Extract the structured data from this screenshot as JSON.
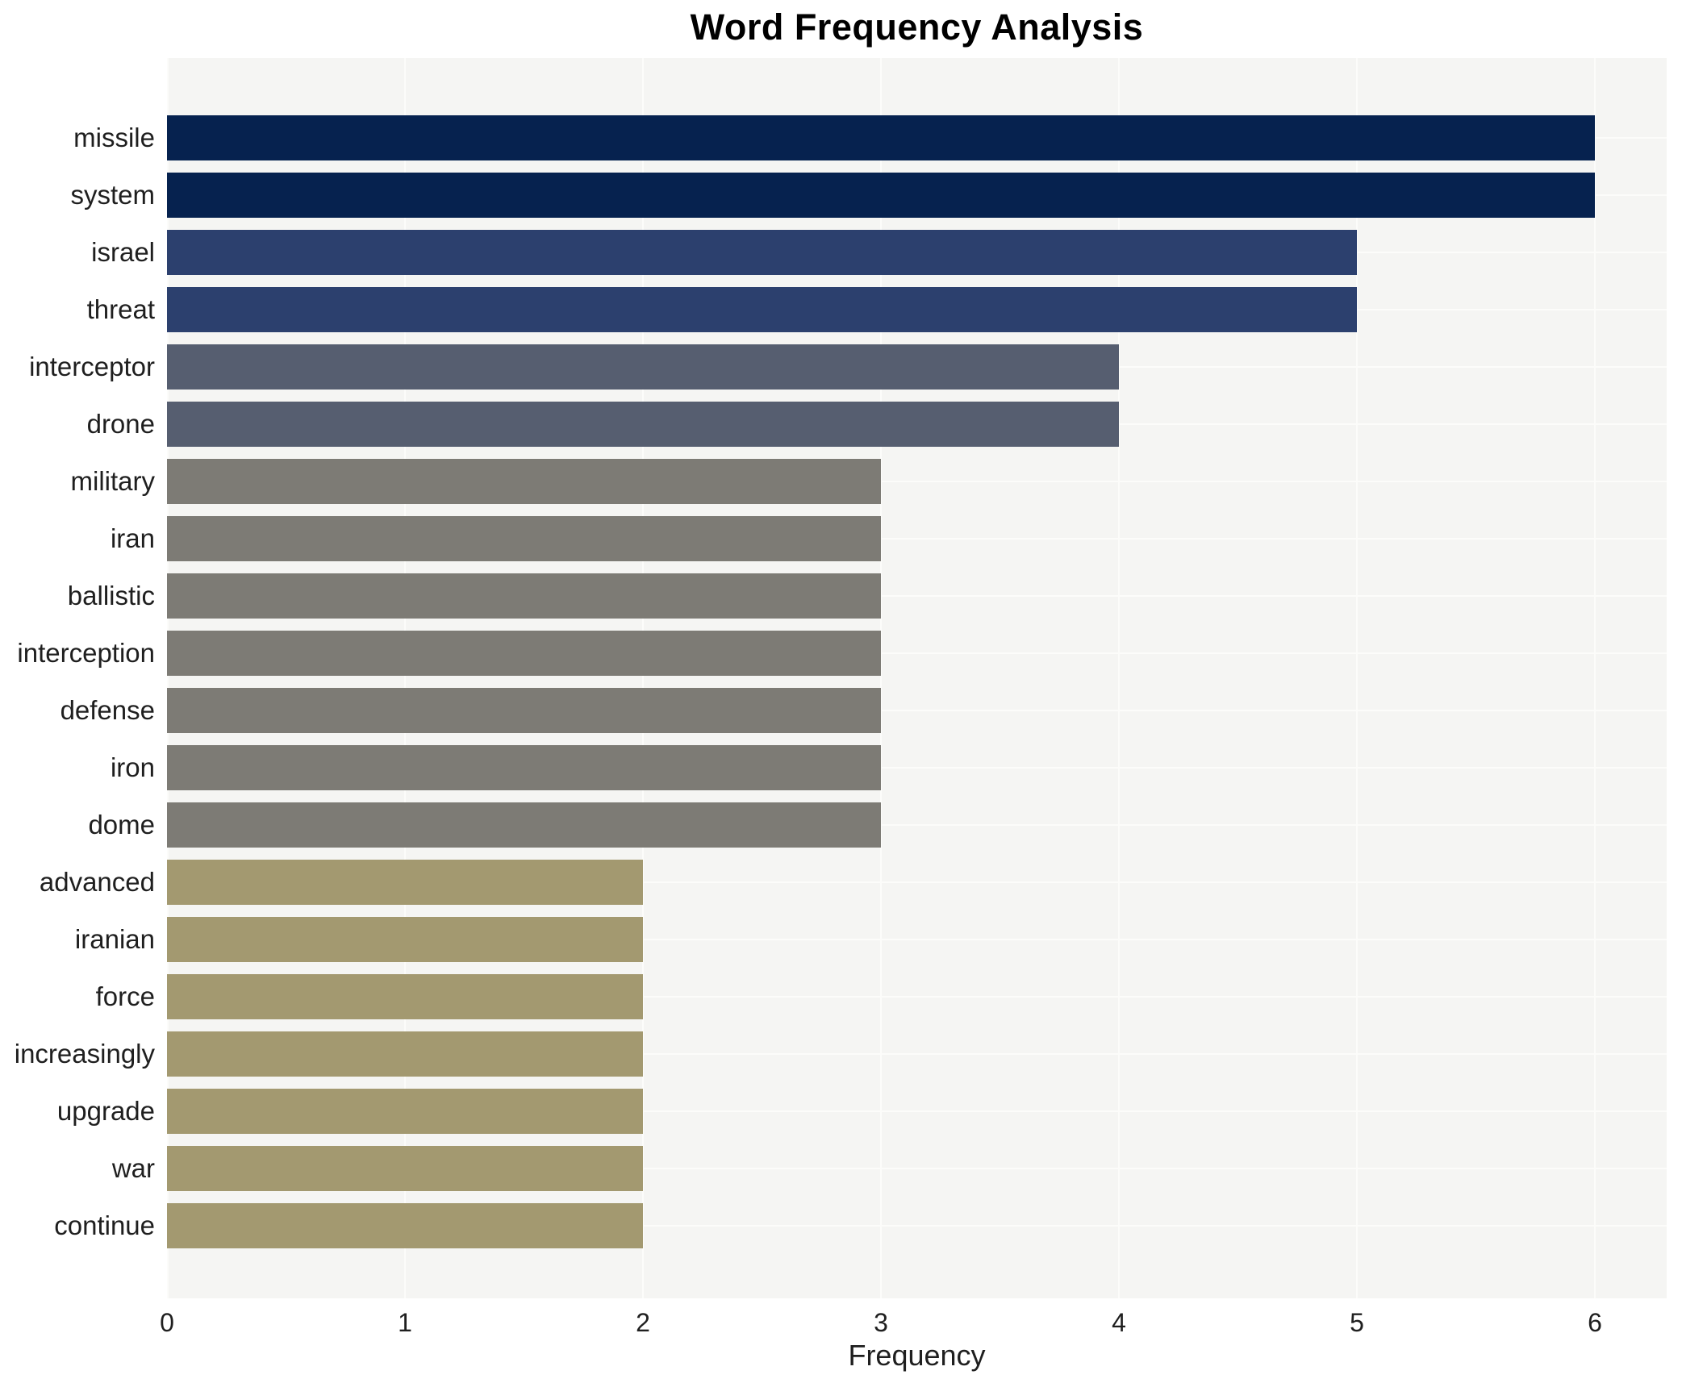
{
  "chart_data": {
    "type": "bar",
    "orientation": "horizontal",
    "title": "Word Frequency Analysis",
    "xlabel": "Frequency",
    "ylabel": "",
    "categories": [
      "missile",
      "system",
      "israel",
      "threat",
      "interceptor",
      "drone",
      "military",
      "iran",
      "ballistic",
      "interception",
      "defense",
      "iron",
      "dome",
      "advanced",
      "iranian",
      "force",
      "increasingly",
      "upgrade",
      "war",
      "continue"
    ],
    "values": [
      6,
      6,
      5,
      5,
      4,
      4,
      3,
      3,
      3,
      3,
      3,
      3,
      3,
      2,
      2,
      2,
      2,
      2,
      2,
      2
    ],
    "xticks": [
      0,
      1,
      2,
      3,
      4,
      5,
      6
    ],
    "xlim": [
      0,
      6.3
    ],
    "grid": true,
    "legend": "none",
    "colors": {
      "value_6": "#06224f",
      "value_5": "#2c406e",
      "value_4": "#565e70",
      "value_3": "#7d7b75",
      "value_2": "#a39970",
      "plot_background": "#f5f5f3",
      "gridline": "#fcfcfa",
      "figure_background": "#ffffff",
      "text": "#1f1f1f"
    }
  }
}
